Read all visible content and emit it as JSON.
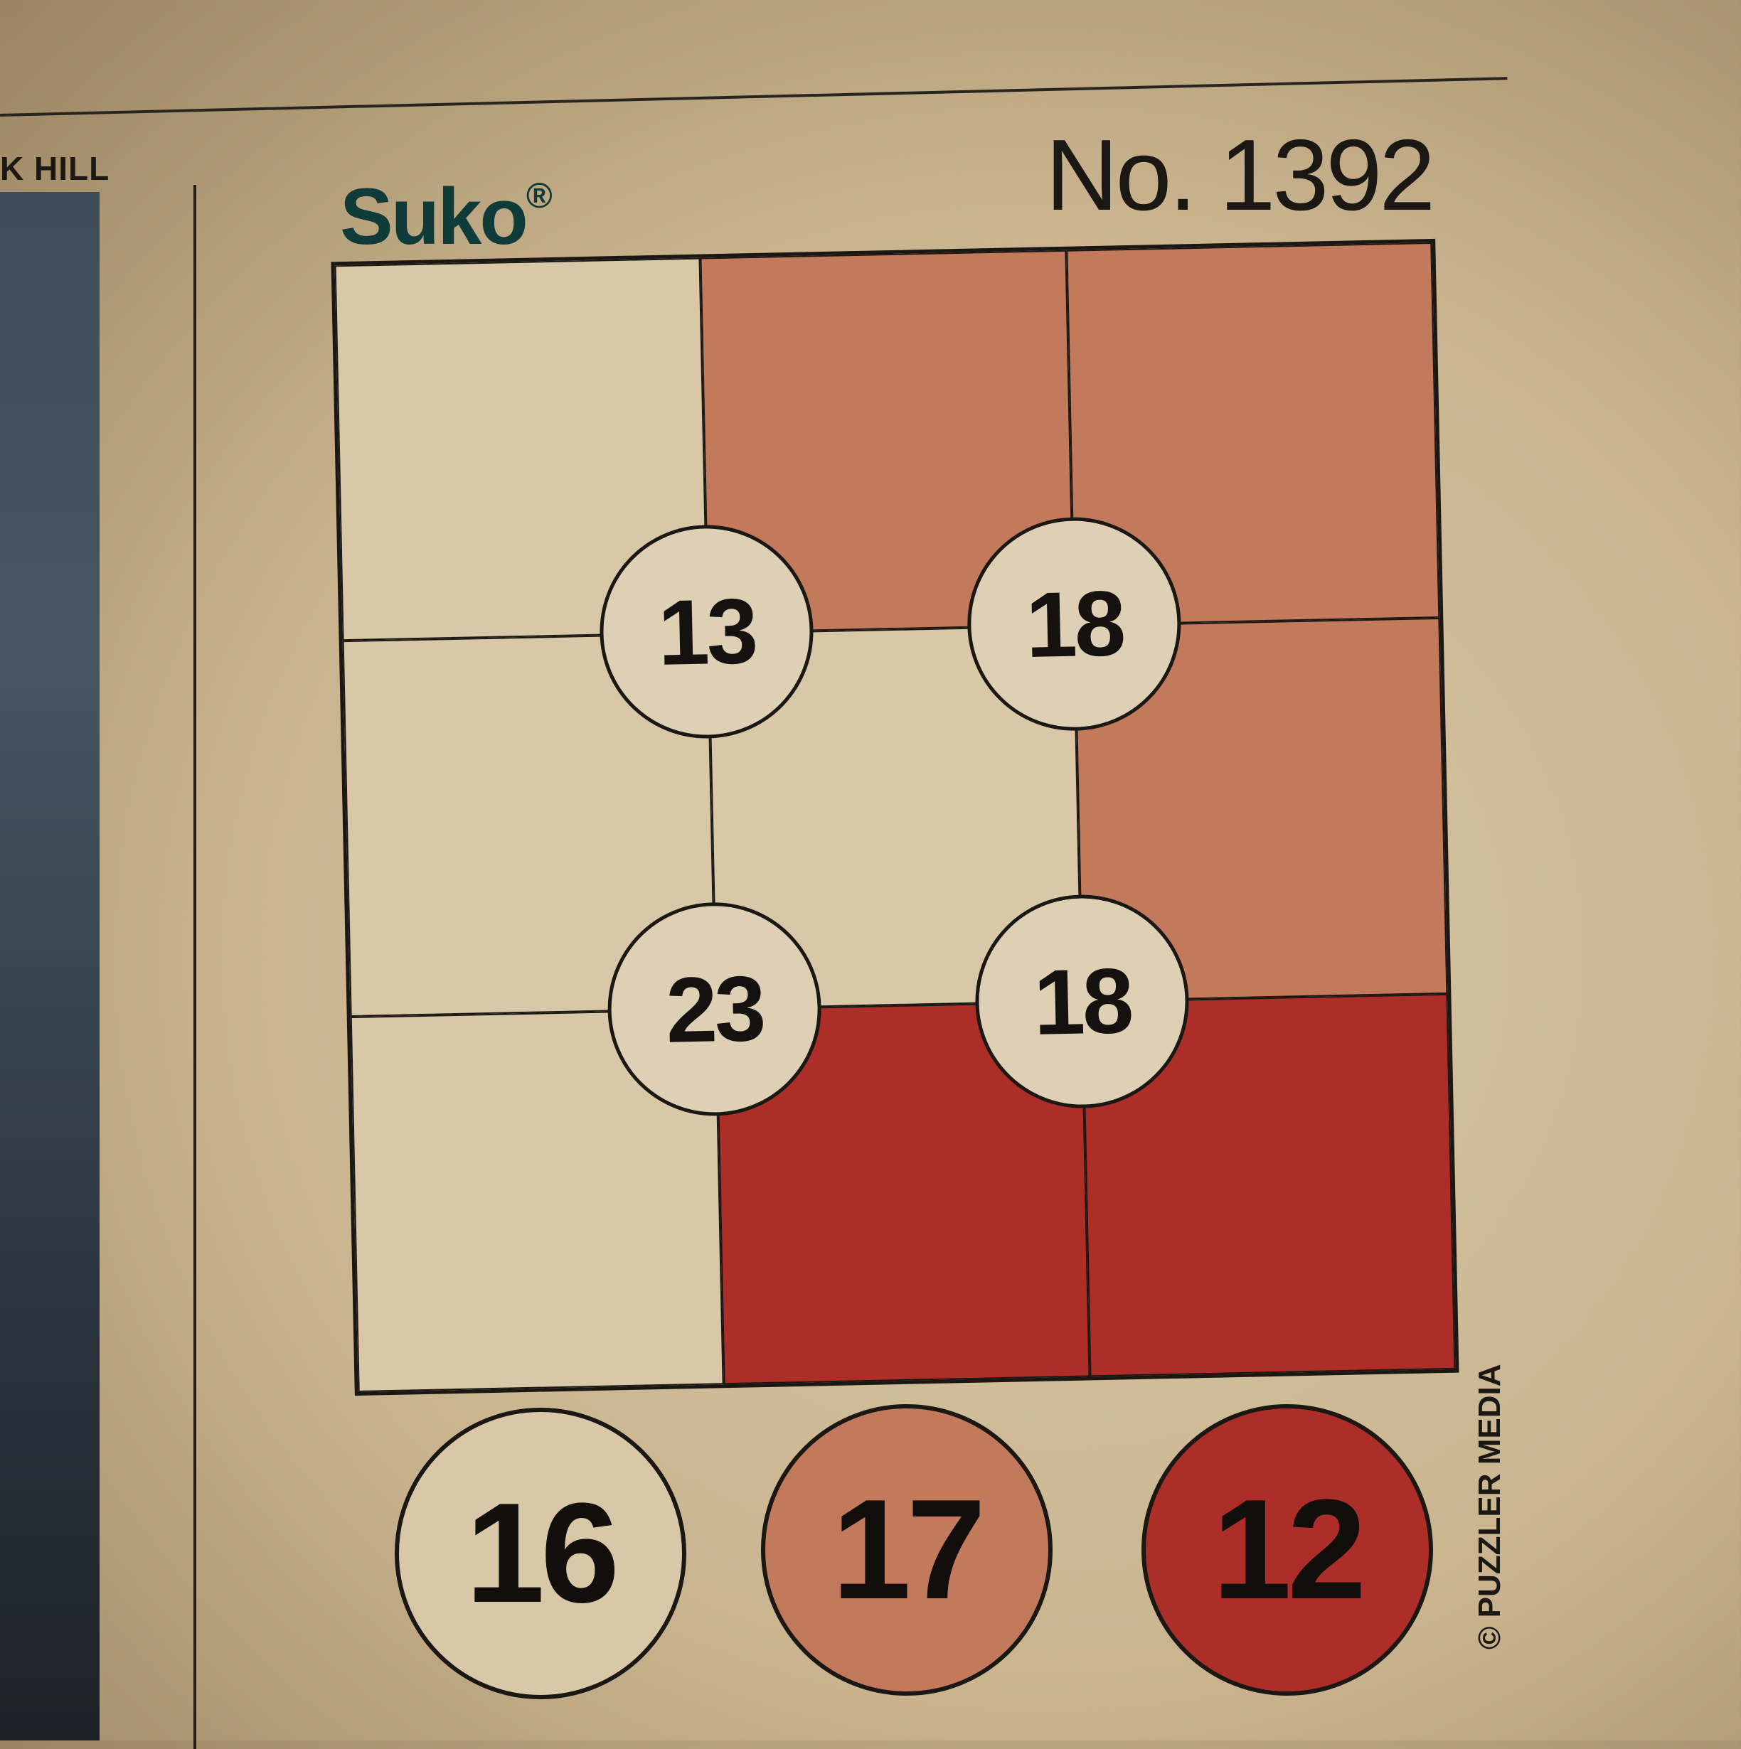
{
  "header": {
    "brand": "Suko",
    "brand_mark": "®",
    "puzzle_number": "No. 1392"
  },
  "neighbor_column": {
    "label": "K HILL"
  },
  "colors": {
    "pale": "#d8c8a8",
    "salmon": "#c37a5c",
    "red": "#ad2e28",
    "ink": "#1b1713"
  },
  "grid": {
    "rows": [
      [
        "pale",
        "salmon",
        "salmon"
      ],
      [
        "pale",
        "pale",
        "salmon"
      ],
      [
        "pale",
        "red",
        "red"
      ]
    ],
    "clues": [
      "13",
      "18",
      "23",
      "18"
    ]
  },
  "totals": [
    {
      "value": "16",
      "color": "pale"
    },
    {
      "value": "17",
      "color": "salmon"
    },
    {
      "value": "12",
      "color": "red"
    }
  ],
  "credit": "© PUZZLER MEDIA"
}
